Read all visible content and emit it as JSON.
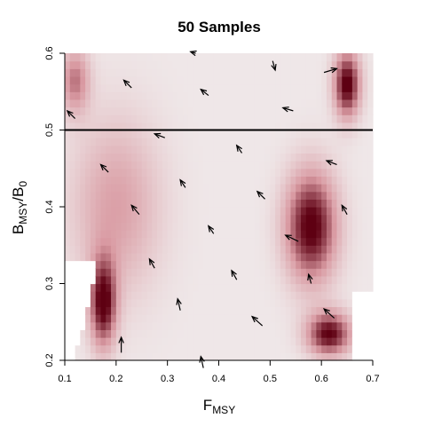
{
  "chart_data": {
    "type": "heatmap",
    "title": "50 Samples",
    "xlabel": {
      "main": "F",
      "sub": "MSY"
    },
    "ylabel": {
      "main_1": "B",
      "sub_1": "MSY",
      "slash": "/",
      "main_2": "B",
      "sub_2": "0"
    },
    "xlim": [
      0.1,
      0.7
    ],
    "ylim": [
      0.2,
      0.6
    ],
    "x_ticks": [
      "0.1",
      "0.2",
      "0.3",
      "0.4",
      "0.5",
      "0.6",
      "0.7"
    ],
    "y_ticks": [
      "0.2",
      "0.3",
      "0.4",
      "0.5",
      "0.6"
    ],
    "reference_line": {
      "y": 0.5,
      "color": "#000000"
    },
    "colors": {
      "high": "#5e0012",
      "mid": "#d99aa2",
      "low": "#f2f2f2",
      "outside": "#ffffff"
    },
    "hotspots": [
      {
        "x": 0.58,
        "y": 0.375,
        "intensity": 1.0,
        "sx": 0.035,
        "sy": 0.05
      },
      {
        "x": 0.65,
        "y": 0.56,
        "intensity": 1.0,
        "sx": 0.018,
        "sy": 0.03
      },
      {
        "x": 0.615,
        "y": 0.235,
        "intensity": 0.95,
        "sx": 0.03,
        "sy": 0.02
      },
      {
        "x": 0.12,
        "y": 0.565,
        "intensity": 0.55,
        "sx": 0.02,
        "sy": 0.03
      },
      {
        "x": 0.175,
        "y": 0.275,
        "intensity": 0.95,
        "sx": 0.018,
        "sy": 0.04
      },
      {
        "x": 0.2,
        "y": 0.4,
        "intensity": 0.4,
        "sx": 0.06,
        "sy": 0.08
      }
    ],
    "arrows": [
      {
        "x": 0.12,
        "y": 0.515,
        "dx": -0.015,
        "dy": 0.01
      },
      {
        "x": 0.23,
        "y": 0.555,
        "dx": -0.015,
        "dy": 0.01
      },
      {
        "x": 0.38,
        "y": 0.545,
        "dx": -0.015,
        "dy": 0.008
      },
      {
        "x": 0.355,
        "y": 0.6,
        "dx": -0.01,
        "dy": 0.002
      },
      {
        "x": 0.505,
        "y": 0.59,
        "dx": 0.005,
        "dy": -0.012
      },
      {
        "x": 0.545,
        "y": 0.525,
        "dx": -0.02,
        "dy": 0.004
      },
      {
        "x": 0.605,
        "y": 0.575,
        "dx": 0.025,
        "dy": 0.005
      },
      {
        "x": 0.295,
        "y": 0.49,
        "dx": -0.02,
        "dy": 0.005
      },
      {
        "x": 0.445,
        "y": 0.47,
        "dx": -0.01,
        "dy": 0.01
      },
      {
        "x": 0.63,
        "y": 0.455,
        "dx": -0.02,
        "dy": 0.005
      },
      {
        "x": 0.185,
        "y": 0.445,
        "dx": -0.015,
        "dy": 0.01
      },
      {
        "x": 0.335,
        "y": 0.425,
        "dx": -0.01,
        "dy": 0.01
      },
      {
        "x": 0.49,
        "y": 0.41,
        "dx": -0.015,
        "dy": 0.01
      },
      {
        "x": 0.65,
        "y": 0.39,
        "dx": -0.01,
        "dy": 0.012
      },
      {
        "x": 0.245,
        "y": 0.39,
        "dx": -0.015,
        "dy": 0.012
      },
      {
        "x": 0.39,
        "y": 0.365,
        "dx": -0.01,
        "dy": 0.01
      },
      {
        "x": 0.555,
        "y": 0.355,
        "dx": -0.025,
        "dy": 0.008
      },
      {
        "x": 0.275,
        "y": 0.32,
        "dx": -0.01,
        "dy": 0.012
      },
      {
        "x": 0.435,
        "y": 0.305,
        "dx": -0.01,
        "dy": 0.012
      },
      {
        "x": 0.58,
        "y": 0.3,
        "dx": -0.005,
        "dy": 0.012
      },
      {
        "x": 0.325,
        "y": 0.265,
        "dx": -0.005,
        "dy": 0.015
      },
      {
        "x": 0.485,
        "y": 0.245,
        "dx": -0.02,
        "dy": 0.012
      },
      {
        "x": 0.625,
        "y": 0.255,
        "dx": -0.02,
        "dy": 0.012
      },
      {
        "x": 0.21,
        "y": 0.21,
        "dx": 0.0,
        "dy": 0.02
      },
      {
        "x": 0.37,
        "y": 0.19,
        "dx": -0.005,
        "dy": 0.015
      }
    ]
  }
}
